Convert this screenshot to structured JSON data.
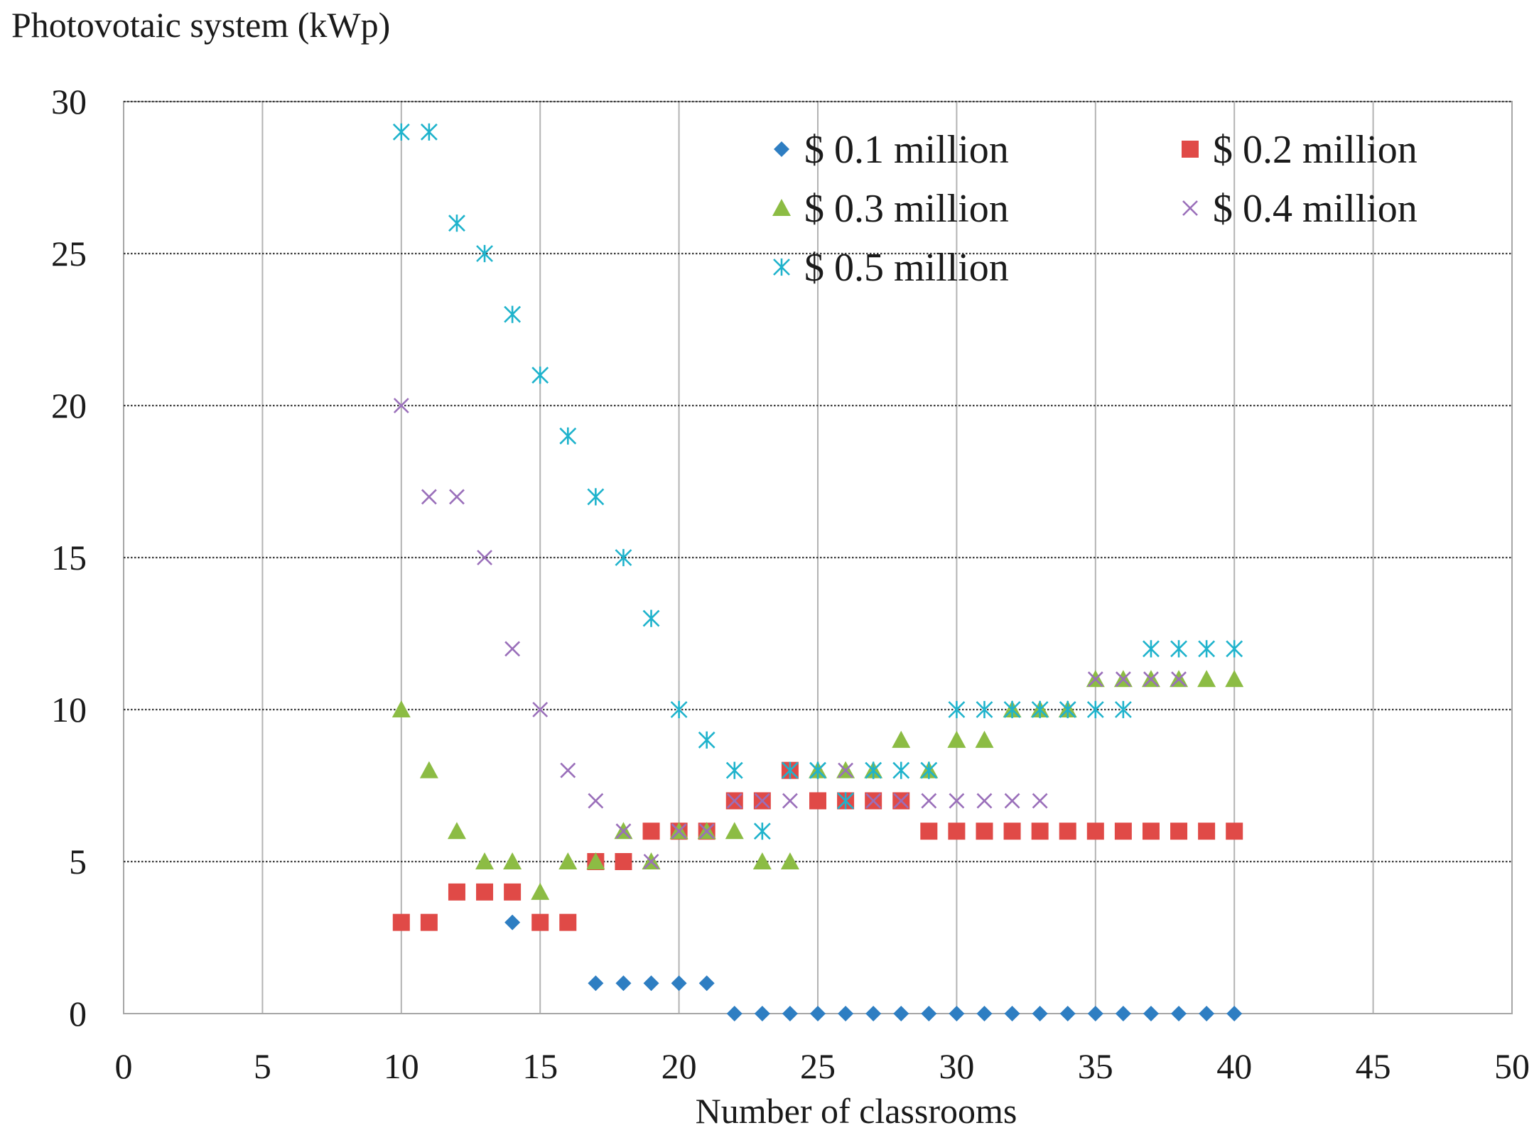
{
  "chart_data": {
    "type": "scatter",
    "xlabel": "Number of classrooms",
    "ylabel": "Photovotaic system (kWp)",
    "xlim": [
      0,
      50
    ],
    "ylim": [
      0,
      30
    ],
    "xticks": [
      0,
      5,
      10,
      15,
      20,
      25,
      30,
      35,
      40,
      45,
      50
    ],
    "yticks": [
      0,
      5,
      10,
      15,
      20,
      25,
      30
    ],
    "grid": true,
    "legend_position": "top-right",
    "series": [
      {
        "name": "$ 0.1 million",
        "marker": "diamond",
        "color": "#2e7ec2",
        "x": [
          14,
          17,
          18,
          19,
          20,
          21,
          22,
          23,
          24,
          25,
          26,
          27,
          28,
          29,
          30,
          31,
          32,
          33,
          34,
          35,
          36,
          37,
          38,
          39,
          40
        ],
        "y": [
          3,
          1,
          1,
          1,
          1,
          1,
          0,
          0,
          0,
          0,
          0,
          0,
          0,
          0,
          0,
          0,
          0,
          0,
          0,
          0,
          0,
          0,
          0,
          0,
          0
        ]
      },
      {
        "name": "$ 0.2 million",
        "marker": "square",
        "color": "#e04a47",
        "x": [
          10,
          11,
          12,
          13,
          14,
          15,
          16,
          17,
          18,
          19,
          20,
          21,
          22,
          23,
          24,
          25,
          26,
          27,
          28,
          29,
          30,
          31,
          32,
          33,
          34,
          35,
          36,
          37,
          38,
          39,
          40
        ],
        "y": [
          3,
          3,
          4,
          4,
          4,
          3,
          3,
          5,
          5,
          6,
          6,
          6,
          7,
          7,
          8,
          7,
          7,
          7,
          7,
          6,
          6,
          6,
          6,
          6,
          6,
          6,
          6,
          6,
          6,
          6,
          6
        ]
      },
      {
        "name": "$ 0.3 million",
        "marker": "triangle",
        "color": "#8cbc44",
        "x": [
          10,
          11,
          12,
          13,
          14,
          15,
          16,
          17,
          18,
          19,
          20,
          21,
          22,
          23,
          24,
          25,
          26,
          27,
          28,
          29,
          30,
          31,
          32,
          33,
          34,
          35,
          36,
          37,
          38,
          39,
          40
        ],
        "y": [
          10,
          8,
          6,
          5,
          5,
          4,
          5,
          5,
          6,
          5,
          6,
          6,
          6,
          5,
          5,
          8,
          8,
          8,
          9,
          8,
          9,
          9,
          10,
          10,
          10,
          11,
          11,
          11,
          11,
          11,
          11
        ]
      },
      {
        "name": "$ 0.4 million",
        "marker": "x",
        "color": "#9a6fba",
        "x": [
          10,
          11,
          12,
          13,
          14,
          15,
          16,
          17,
          18,
          19,
          20,
          21,
          22,
          23,
          24,
          25,
          26,
          27,
          28,
          29,
          30,
          31,
          32,
          33,
          34,
          35,
          36,
          37,
          38
        ],
        "y": [
          20,
          17,
          17,
          15,
          12,
          10,
          8,
          7,
          6,
          5,
          6,
          6,
          7,
          7,
          7,
          8,
          8,
          7,
          7,
          7,
          7,
          7,
          7,
          7,
          10,
          11,
          11,
          11,
          11
        ]
      },
      {
        "name": "$ 0.5 million",
        "marker": "asterisk",
        "color": "#1fb3cc",
        "x": [
          10,
          11,
          12,
          13,
          14,
          15,
          16,
          17,
          18,
          19,
          20,
          21,
          22,
          23,
          24,
          25,
          26,
          27,
          28,
          29,
          30,
          31,
          32,
          33,
          34,
          35,
          36,
          37,
          38,
          39,
          40
        ],
        "y": [
          29,
          29,
          26,
          25,
          23,
          21,
          19,
          17,
          15,
          13,
          10,
          9,
          8,
          6,
          8,
          8,
          7,
          8,
          8,
          8,
          10,
          10,
          10,
          10,
          10,
          10,
          10,
          12,
          12,
          12,
          12
        ]
      }
    ]
  }
}
